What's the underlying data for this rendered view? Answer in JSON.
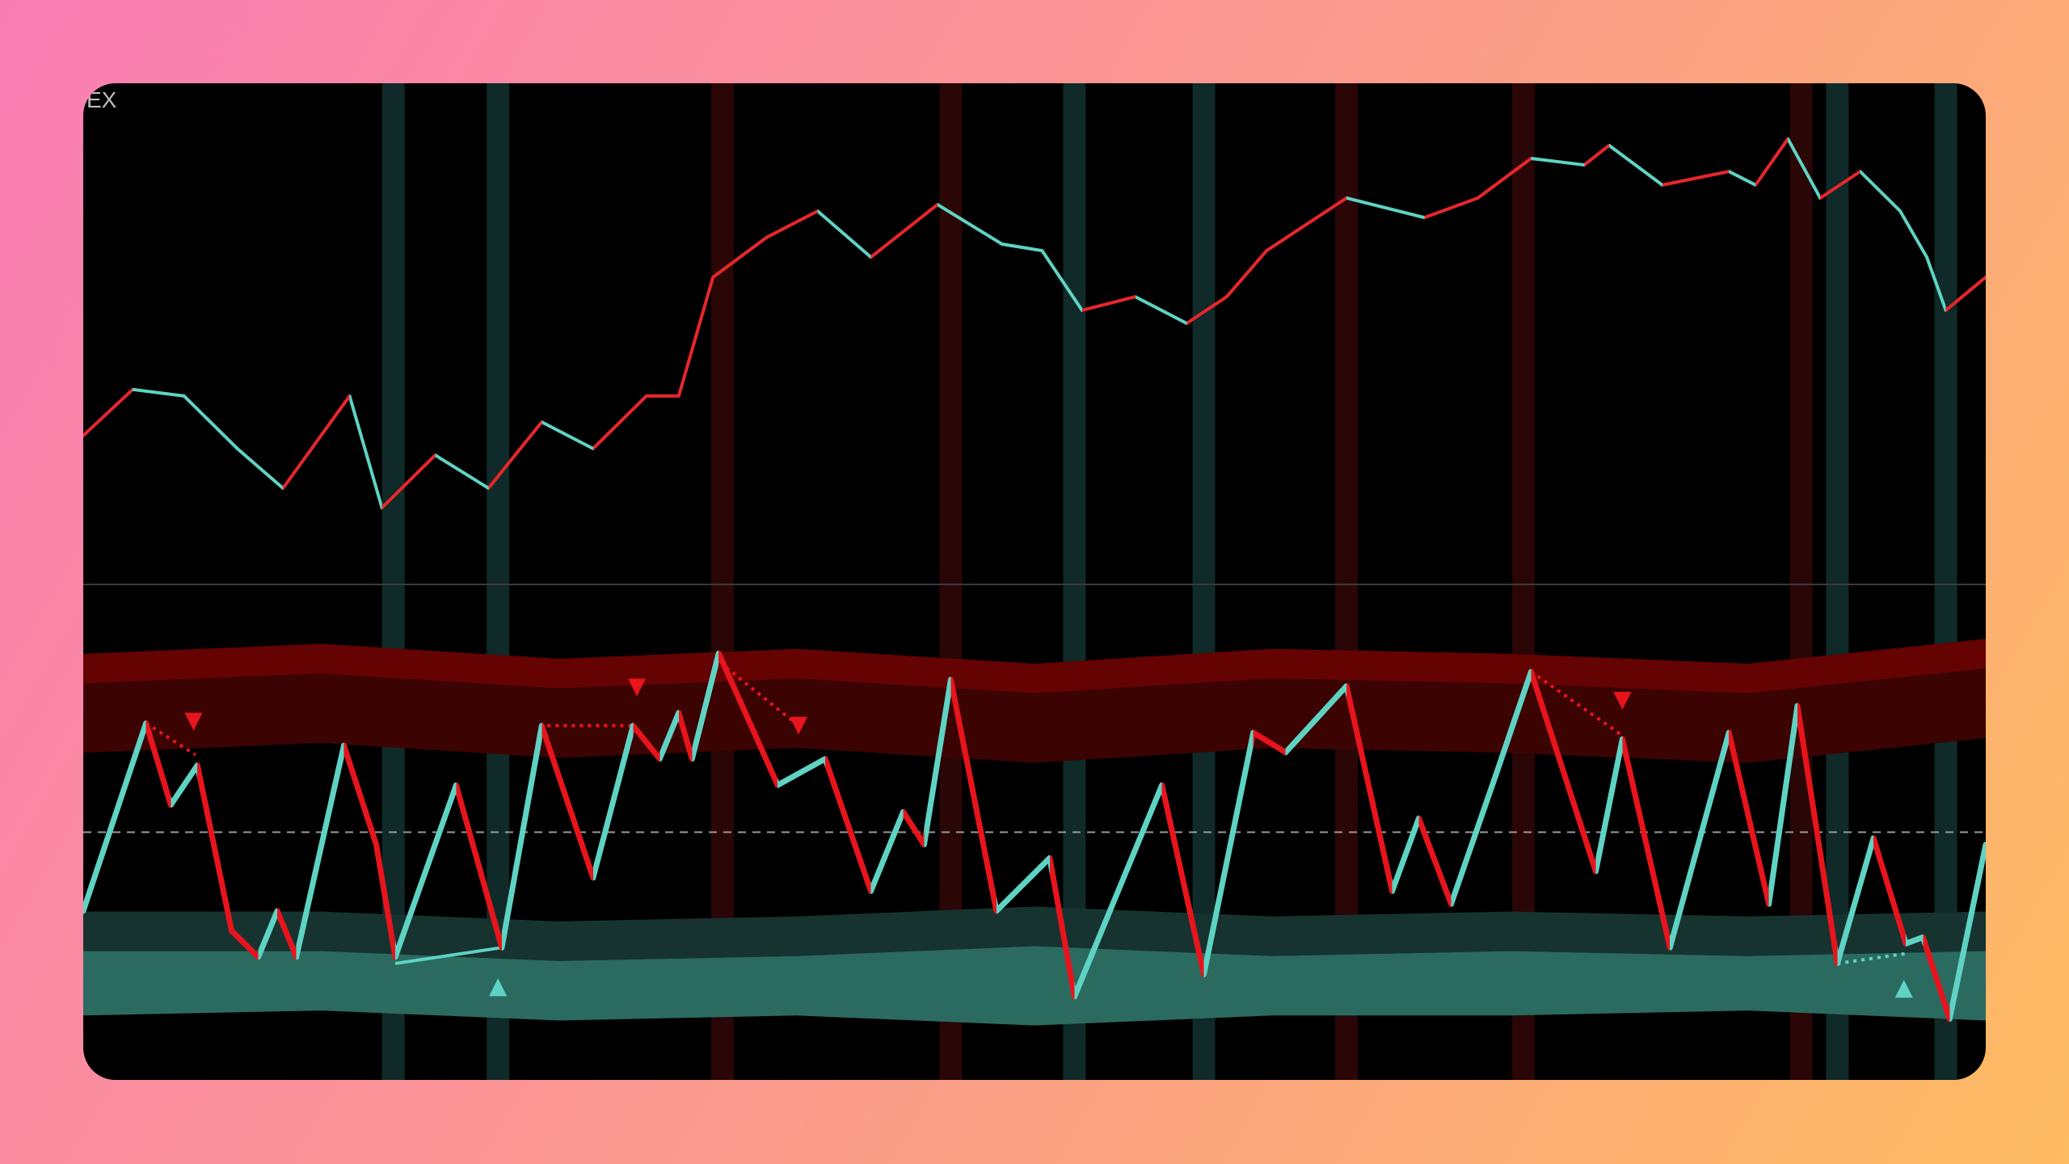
{
  "chart_data": [
    {
      "type": "line",
      "label": "EX",
      "x": [
        0,
        2.6,
        5.3,
        8.1,
        10.5,
        14.0,
        15.7,
        18.5,
        21.3,
        24.1,
        26.8,
        29.6,
        31.3,
        33.1,
        35.9,
        38.6,
        41.4,
        44.9,
        48.3,
        50.4,
        52.5,
        55.3,
        58.0,
        60.1,
        62.2,
        66.4,
        70.5,
        73.3,
        76.1,
        78.9,
        80.2,
        83.0,
        86.5,
        87.9,
        89.6,
        91.3,
        93.4,
        95.5,
        96.9,
        97.9,
        100
      ],
      "values": [
        29.7,
        38.9,
        37.6,
        27.1,
        19.2,
        37.6,
        15.3,
        25.8,
        19.2,
        32.4,
        27.1,
        37.6,
        37.6,
        61.3,
        69.2,
        74.5,
        65.3,
        75.8,
        67.9,
        66.6,
        54.7,
        57.4,
        52.1,
        57.4,
        66.6,
        77.1,
        73.2,
        77.1,
        85.0,
        83.7,
        87.6,
        79.7,
        82.4,
        79.7,
        88.9,
        77.1,
        82.4,
        74.5,
        65.3,
        54.7,
        61.3
      ],
      "xlim": [
        0,
        100
      ],
      "ylim": [
        0,
        100
      ],
      "up_color": "#e8262b",
      "down_color": "#5fd3c3",
      "highlights": [
        {
          "x": 16.3,
          "color": "#0f2a28"
        },
        {
          "x": 21.8,
          "color": "#0f2a28"
        },
        {
          "x": 52.1,
          "color": "#0f2a28"
        },
        {
          "x": 58.9,
          "color": "#0f2a28"
        },
        {
          "x": 92.2,
          "color": "#0f2a28"
        },
        {
          "x": 97.9,
          "color": "#0f2a28"
        },
        {
          "x": 33.6,
          "color": "#2a0606"
        },
        {
          "x": 45.6,
          "color": "#2a0606"
        },
        {
          "x": 66.4,
          "color": "#2a0606"
        },
        {
          "x": 75.7,
          "color": "#2a0606"
        },
        {
          "x": 90.3,
          "color": "#2a0606"
        }
      ]
    },
    {
      "type": "oscillator",
      "x": [
        0,
        3.3,
        4.6,
        6.0,
        7.8,
        9.2,
        10.2,
        11.2,
        13.7,
        15.4,
        16.4,
        19.6,
        22.0,
        24.1,
        26.8,
        28.9,
        30.3,
        31.3,
        32.0,
        33.4,
        36.5,
        39.0,
        41.4,
        43.1,
        44.2,
        45.6,
        48.0,
        50.8,
        52.1,
        56.7,
        58.9,
        61.5,
        63.2,
        66.4,
        68.8,
        70.2,
        71.9,
        74.3,
        76.1,
        79.5,
        80.9,
        83.4,
        86.5,
        88.6,
        90.1,
        92.2,
        94.1,
        95.8,
        96.7,
        98.1,
        100
      ],
      "values": [
        34.1,
        72.0,
        55.5,
        63.5,
        30.1,
        24.8,
        34.1,
        24.8,
        67.5,
        47.5,
        24.8,
        59.5,
        26.7,
        71.5,
        40.8,
        71.5,
        64.8,
        74.1,
        64.8,
        86.1,
        59.5,
        64.8,
        38.1,
        54.1,
        47.5,
        80.8,
        34.1,
        44.8,
        16.8,
        59.5,
        21.3,
        70.1,
        66.1,
        79.5,
        38.1,
        52.8,
        35.5,
        62.1,
        82.4,
        42.1,
        68.8,
        26.7,
        70.1,
        35.5,
        75.5,
        23.5,
        48.8,
        27.5,
        28.8,
        12.3,
        47.5
      ],
      "xlim": [
        0,
        100
      ],
      "ylim": [
        0,
        100
      ],
      "midline": 50,
      "up_color": "#5fd3c3",
      "down_color": "#e8141c",
      "band_x": [
        0,
        12.5,
        25,
        37.5,
        50,
        62.5,
        75,
        87.5,
        100
      ],
      "upper_band": {
        "top": [
          86,
          88,
          85,
          87,
          84,
          87,
          86,
          84,
          89
        ],
        "mid": [
          80,
          82,
          79,
          81,
          78,
          81,
          80,
          78,
          83
        ],
        "bottom": [
          66,
          68,
          65,
          67,
          64,
          67,
          66,
          64,
          69
        ],
        "colors": [
          "#650202",
          "#3c0303"
        ]
      },
      "lower_band": {
        "top": [
          34,
          34,
          32,
          33,
          35,
          33,
          34,
          33,
          34
        ],
        "mid": [
          26,
          26,
          24,
          25,
          27,
          25,
          26,
          25,
          26
        ],
        "bottom": [
          13,
          14,
          12,
          13,
          11,
          13,
          13,
          14,
          12
        ],
        "colors": [
          "#163330",
          "#2b6a5f"
        ]
      },
      "signals_down": {
        "x": [
          5.8,
          29.1,
          37.6,
          80.9
        ],
        "values": [
          72.3,
          79.2,
          71.5,
          76.5
        ],
        "color": "#e8141c"
      },
      "signals_up": {
        "x": [
          21.8,
          95.7
        ],
        "values": [
          18.7,
          18.4
        ],
        "color": "#5fd3c3"
      },
      "divergences": [
        {
          "x": [
            3.3,
            5.9
          ],
          "values": [
            72.0,
            65.6
          ],
          "color": "#e8141c"
        },
        {
          "x": [
            24.4,
            28.9
          ],
          "values": [
            71.5,
            71.5
          ],
          "color": "#e8141c"
        },
        {
          "x": [
            33.8,
            37.6
          ],
          "values": [
            83.2,
            71.5
          ],
          "color": "#e8141c"
        },
        {
          "x": [
            76.1,
            80.9
          ],
          "values": [
            82.4,
            69.5
          ],
          "color": "#e8141c"
        },
        {
          "x": [
            16.4,
            22.0
          ],
          "values": [
            23.5,
            26.7
          ],
          "color": "#5fd3c3"
        },
        {
          "x": [
            92.2,
            95.8
          ],
          "values": [
            23.5,
            25.5
          ],
          "color": "#5fd3c3"
        }
      ]
    }
  ]
}
